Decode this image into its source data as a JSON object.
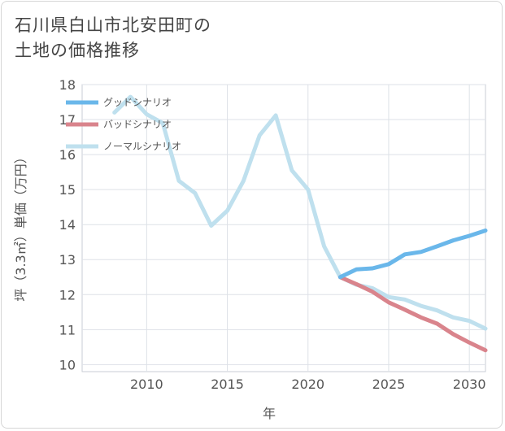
{
  "title_lines": [
    "石川県白山市北安田町の",
    "土地の価格推移"
  ],
  "chart_data": {
    "type": "line",
    "title": "石川県白山市北安田町の土地の価格推移",
    "xlabel": "年",
    "ylabel": "坪（3.3㎡）単価（万円）",
    "xlim": [
      2006,
      2031
    ],
    "ylim": [
      9.8,
      18
    ],
    "xticks": [
      2010,
      2015,
      2020,
      2025,
      2030
    ],
    "yticks": [
      10,
      11,
      12,
      13,
      14,
      15,
      16,
      17,
      18
    ],
    "grid": true,
    "legend_position": "top-left",
    "series": [
      {
        "name": "グッドシナリオ",
        "color": "#6ab7ea",
        "x": [
          2022,
          2023,
          2024,
          2025,
          2026,
          2027,
          2028,
          2029,
          2030,
          2031
        ],
        "values": [
          12.5,
          12.72,
          12.75,
          12.87,
          13.15,
          13.22,
          13.38,
          13.55,
          13.68,
          13.83
        ]
      },
      {
        "name": "バッドシナリオ",
        "color": "#d9848c",
        "x": [
          2022,
          2023,
          2024,
          2025,
          2026,
          2027,
          2028,
          2029,
          2030,
          2031
        ],
        "values": [
          12.5,
          12.3,
          12.08,
          11.78,
          11.57,
          11.35,
          11.17,
          10.87,
          10.63,
          10.41
        ]
      },
      {
        "name": "ノーマルシナリオ",
        "color": "#bfe0ee",
        "x": [
          2008,
          2009,
          2010,
          2011,
          2012,
          2013,
          2014,
          2015,
          2016,
          2017,
          2018,
          2019,
          2020,
          2021,
          2022,
          2023,
          2024,
          2025,
          2026,
          2027,
          2028,
          2029,
          2030,
          2031
        ],
        "values": [
          17.2,
          17.65,
          17.15,
          16.9,
          15.25,
          14.9,
          13.97,
          14.4,
          15.25,
          16.55,
          17.12,
          15.55,
          15.0,
          13.38,
          12.5,
          12.28,
          12.18,
          11.93,
          11.86,
          11.68,
          11.55,
          11.35,
          11.25,
          11.03
        ]
      }
    ]
  }
}
